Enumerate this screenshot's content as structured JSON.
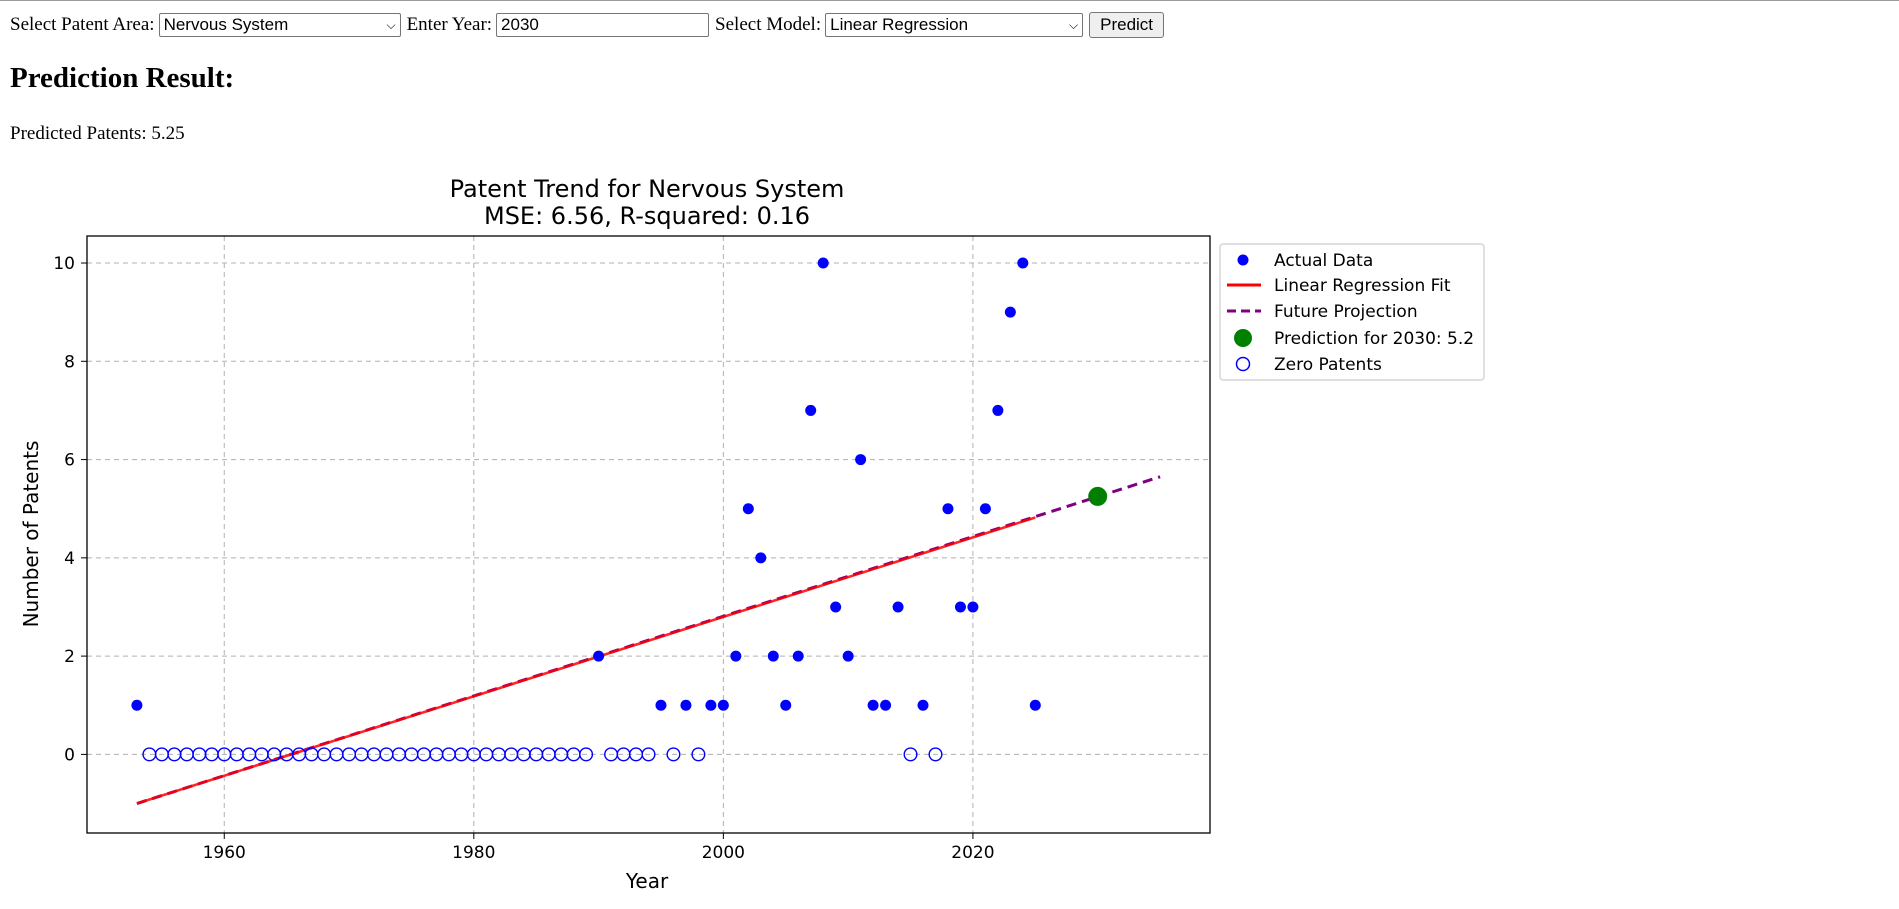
{
  "form": {
    "area_label": "Select Patent Area:",
    "area_value": "Nervous System",
    "year_label": "Enter Year:",
    "year_value": "2030",
    "model_label": "Select Model:",
    "model_value": "Linear Regression",
    "predict_label": "Predict"
  },
  "result": {
    "heading": "Prediction Result:",
    "text_label": "Predicted Patents:",
    "value": "5.25"
  },
  "chart_data": {
    "type": "scatter",
    "title": "Patent Trend for Nervous System",
    "subtitle": "MSE: 6.56, R-squared: 0.16",
    "xlabel": "Year",
    "ylabel": "Number of Patents",
    "xlim": [
      1949,
      2039
    ],
    "ylim": [
      -1.6,
      10.55
    ],
    "xticks": [
      1960,
      1980,
      2000,
      2020
    ],
    "yticks": [
      0,
      2,
      4,
      6,
      8,
      10
    ],
    "grid": true,
    "legend_position": "outside-top-right",
    "series": [
      {
        "name": "Actual Data",
        "kind": "points",
        "color": "#0000ff",
        "points": [
          [
            1953,
            1
          ],
          [
            1990,
            2
          ],
          [
            1995,
            1
          ],
          [
            1997,
            1
          ],
          [
            1999,
            1
          ],
          [
            2000,
            1
          ],
          [
            2001,
            2
          ],
          [
            2002,
            5
          ],
          [
            2003,
            4
          ],
          [
            2004,
            2
          ],
          [
            2005,
            1
          ],
          [
            2006,
            2
          ],
          [
            2007,
            7
          ],
          [
            2008,
            10
          ],
          [
            2009,
            3
          ],
          [
            2010,
            2
          ],
          [
            2011,
            6
          ],
          [
            2012,
            1
          ],
          [
            2013,
            1
          ],
          [
            2014,
            3
          ],
          [
            2016,
            1
          ],
          [
            2018,
            5
          ],
          [
            2019,
            3
          ],
          [
            2020,
            3
          ],
          [
            2021,
            5
          ],
          [
            2022,
            7
          ],
          [
            2023,
            9
          ],
          [
            2024,
            10
          ],
          [
            2025,
            1
          ]
        ]
      },
      {
        "name": "Linear Regression Fit",
        "kind": "line",
        "color": "#ff0000",
        "points": [
          [
            1953,
            -1.0
          ],
          [
            2025,
            4.82
          ]
        ]
      },
      {
        "name": "Future Projection",
        "kind": "dashed",
        "color": "#800080",
        "points": [
          [
            1953,
            -1.0
          ],
          [
            2035,
            5.65
          ]
        ]
      },
      {
        "name": "Prediction for 2030: 5.2",
        "kind": "marker",
        "color": "#008000",
        "points": [
          [
            2030,
            5.25
          ]
        ]
      },
      {
        "name": "Zero Patents",
        "kind": "hollow",
        "color": "#0000ff",
        "points": [
          [
            1954,
            0
          ],
          [
            1955,
            0
          ],
          [
            1956,
            0
          ],
          [
            1957,
            0
          ],
          [
            1958,
            0
          ],
          [
            1959,
            0
          ],
          [
            1960,
            0
          ],
          [
            1961,
            0
          ],
          [
            1962,
            0
          ],
          [
            1963,
            0
          ],
          [
            1964,
            0
          ],
          [
            1965,
            0
          ],
          [
            1966,
            0
          ],
          [
            1967,
            0
          ],
          [
            1968,
            0
          ],
          [
            1969,
            0
          ],
          [
            1970,
            0
          ],
          [
            1971,
            0
          ],
          [
            1972,
            0
          ],
          [
            1973,
            0
          ],
          [
            1974,
            0
          ],
          [
            1975,
            0
          ],
          [
            1976,
            0
          ],
          [
            1977,
            0
          ],
          [
            1978,
            0
          ],
          [
            1979,
            0
          ],
          [
            1980,
            0
          ],
          [
            1981,
            0
          ],
          [
            1982,
            0
          ],
          [
            1983,
            0
          ],
          [
            1984,
            0
          ],
          [
            1985,
            0
          ],
          [
            1986,
            0
          ],
          [
            1987,
            0
          ],
          [
            1988,
            0
          ],
          [
            1989,
            0
          ],
          [
            1991,
            0
          ],
          [
            1992,
            0
          ],
          [
            1993,
            0
          ],
          [
            1994,
            0
          ],
          [
            1996,
            0
          ],
          [
            1998,
            0
          ],
          [
            2015,
            0
          ],
          [
            2017,
            0
          ]
        ]
      }
    ]
  }
}
